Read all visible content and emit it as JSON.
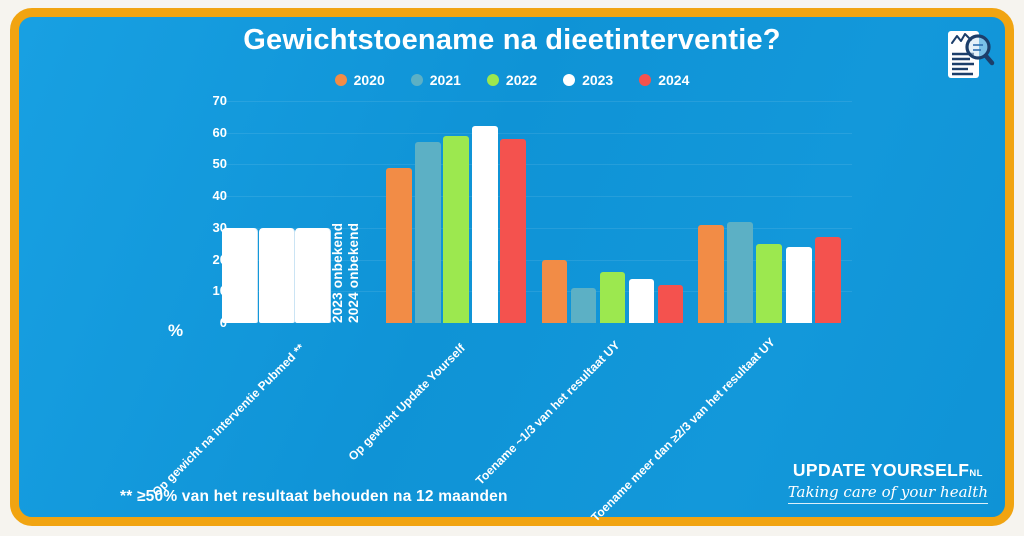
{
  "page": {
    "title": "Gewichtstoename na dieetinterventie?"
  },
  "axis": {
    "percent_label": "%"
  },
  "annotations": {
    "unknown_2023": "2023 onbekend",
    "unknown_2024": "2024 onbekend"
  },
  "footnote": {
    "text": "** ≥50% van het resultaat behouden na 12 maanden"
  },
  "branding": {
    "name": "UPDATE YOURSELF",
    "suffix": "NL",
    "tagline": "Taking care of your health"
  },
  "icons": {
    "top_right": "document-search-icon"
  },
  "colors": {
    "background_blue": "#1095d8",
    "border_orange": "#f1a411",
    "outer_frame": "#f6f4ef",
    "text": "#ffffff",
    "icon_navy": "#1c3e6a"
  },
  "chart_data": {
    "type": "bar",
    "title": "Gewichtstoename na dieetinterventie?",
    "xlabel": "",
    "ylabel": "%",
    "ylim": [
      0,
      70
    ],
    "yticks": [
      70,
      60,
      50,
      40,
      30,
      20,
      10,
      0
    ],
    "grid": "faint horizontal",
    "legend_position": "top",
    "categories": [
      "Op gewicht na interventie Pubmed **",
      "Op gewicht Update Yourself",
      "Toename ~1/3 van het resultaat UY",
      "Toename meer dan ≥2/3 van het resultaat UY"
    ],
    "series": [
      {
        "name": "2020",
        "color": "#f28c46",
        "values": [
          30,
          49,
          20,
          31
        ]
      },
      {
        "name": "2021",
        "color": "#5cb0c5",
        "values": [
          30,
          57,
          11,
          32
        ]
      },
      {
        "name": "2022",
        "color": "#9ce84f",
        "values": [
          30,
          59,
          16,
          25
        ]
      },
      {
        "name": "2023",
        "color": "#ffffff",
        "values": [
          null,
          62,
          14,
          24
        ]
      },
      {
        "name": "2024",
        "color": "#f4524e",
        "values": [
          null,
          58,
          12,
          27
        ]
      }
    ],
    "notes": "Bars of first category are rendered white; 2023 and 2024 values unknown for first category (labels '2023 onbekend' / '2024 onbekend')."
  }
}
